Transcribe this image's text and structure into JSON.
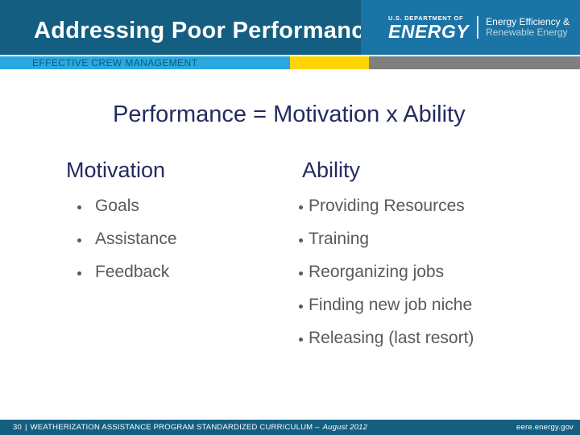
{
  "slide": {
    "title": "Addressing Poor Performance",
    "kicker": "EFFECTIVE CREW MANAGEMENT",
    "equation": "Performance = Motivation x Ability"
  },
  "logo": {
    "department_label": "U.S. DEPARTMENT OF",
    "agency_name": "ENERGY",
    "program_line1": "Energy Efficiency &",
    "program_line2": "Renewable Energy"
  },
  "columns": [
    {
      "heading": "Motivation",
      "items": [
        "Goals",
        "Assistance",
        "Feedback"
      ]
    },
    {
      "heading": "Ability",
      "items": [
        "Providing Resources",
        "Training",
        "Reorganizing jobs",
        "Finding new job niche",
        "Releasing (last resort)"
      ]
    }
  ],
  "footer": {
    "page_number": "30",
    "separator": "|",
    "program_text": "WEATHERIZATION ASSISTANCE PROGRAM STANDARDIZED CURRICULUM –",
    "date": "August 2012",
    "site": "eere.energy.gov"
  },
  "colors": {
    "header_teal": "#145f81",
    "logo_blue": "#1b74a6",
    "kicker_blue": "#29a9e0",
    "kicker_yellow": "#ffd400",
    "kicker_gray": "#7f7f7f",
    "kicker_text": "#0f5a7a",
    "heading_navy": "#232b5f",
    "bullet_gray": "#595959",
    "footer_teal": "#145f81"
  }
}
